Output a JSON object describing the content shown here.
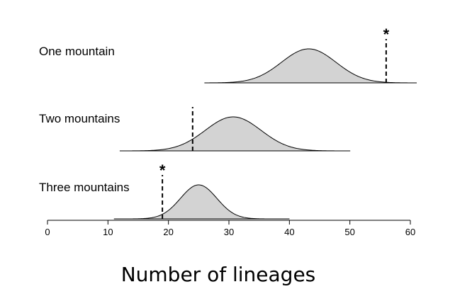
{
  "chart_data": {
    "type": "area",
    "title": "",
    "xlabel": "Number of lineages",
    "ylabel": "",
    "xlim": [
      0,
      60
    ],
    "x_ticks": [
      "0",
      "10",
      "20",
      "30",
      "40",
      "50",
      "60"
    ],
    "grid": false,
    "legend": "none",
    "fill_color": "#d3d3d3",
    "line_color": "#000000",
    "panels": [
      {
        "label": "One mountain",
        "distribution": {
          "mean": 43.2,
          "sd": 4.5,
          "range": [
            26,
            61
          ]
        },
        "observed": 56,
        "marker": "*"
      },
      {
        "label": "Two mountains",
        "distribution": {
          "mean": 30.7,
          "sd": 4.6,
          "range": [
            12,
            50
          ]
        },
        "observed": 24,
        "marker": ""
      },
      {
        "label": "Three mountains",
        "distribution": {
          "mean": 25.0,
          "sd": 3.0,
          "range": [
            11,
            40
          ]
        },
        "observed": 19,
        "marker": "*"
      }
    ]
  }
}
